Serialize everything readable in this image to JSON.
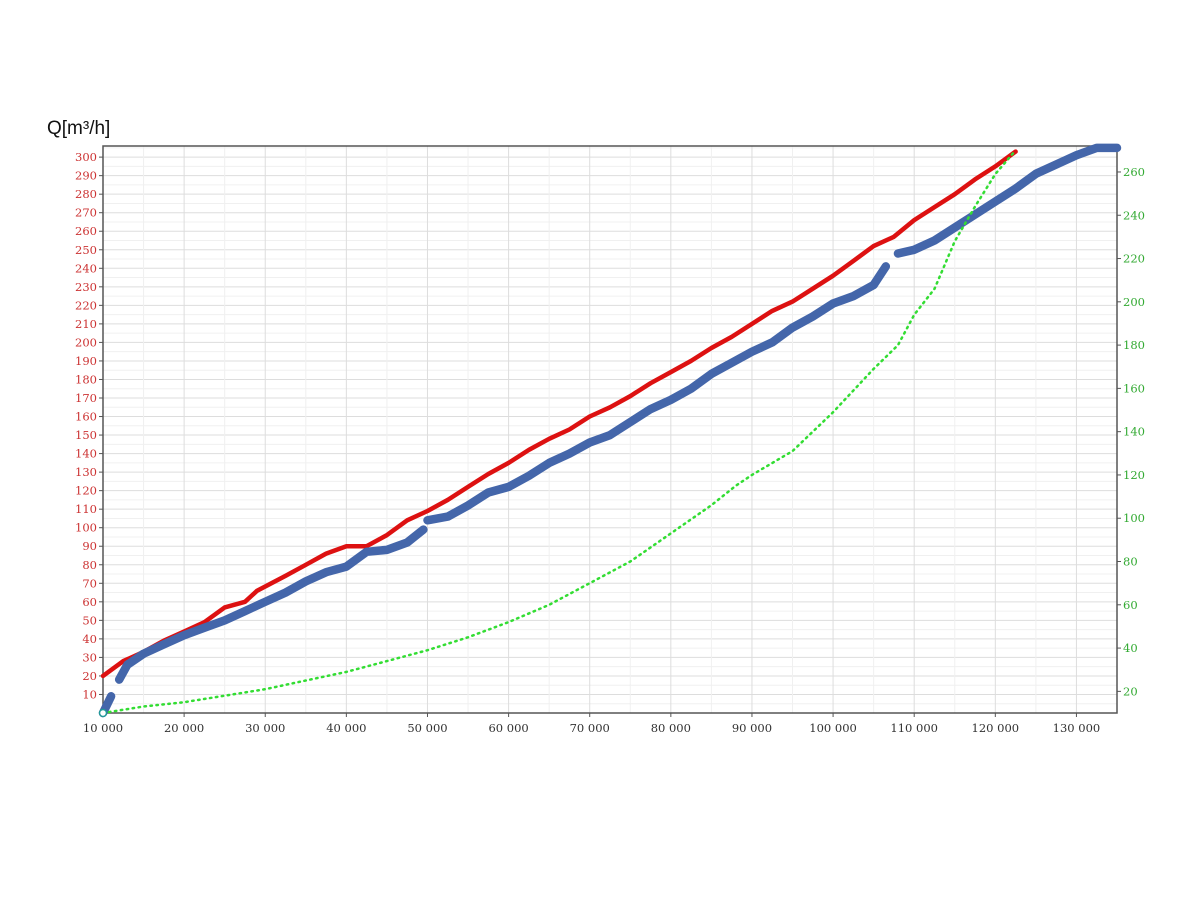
{
  "chart_data": {
    "type": "line",
    "ylabel": "Q[m³/h]",
    "xlim": [
      10000,
      135000
    ],
    "ylim_left": [
      0,
      306
    ],
    "ylim_right": [
      10,
      272
    ],
    "x_ticks": [
      10000,
      20000,
      30000,
      40000,
      50000,
      60000,
      70000,
      80000,
      90000,
      100000,
      110000,
      120000,
      130000
    ],
    "x_tick_labels": [
      "10 000",
      "20 000",
      "30 000",
      "40 000",
      "50 000",
      "60 000",
      "70 000",
      "80 000",
      "90 000",
      "100 000",
      "110 000",
      "120 000",
      "130 000"
    ],
    "y_left_ticks": [
      10,
      20,
      30,
      40,
      50,
      60,
      70,
      80,
      90,
      100,
      110,
      120,
      130,
      140,
      150,
      160,
      170,
      180,
      190,
      200,
      210,
      220,
      230,
      240,
      250,
      260,
      270,
      280,
      290,
      300
    ],
    "y_right_ticks": [
      20,
      40,
      60,
      80,
      100,
      120,
      140,
      160,
      180,
      200,
      220,
      240,
      260
    ],
    "grid": true,
    "colors": {
      "left_axis": "#cc3333",
      "right_axis": "#33aa33",
      "grid": "#dddddd"
    },
    "series": [
      {
        "color": "#dd1111",
        "axis": "left",
        "style": "solid",
        "points": [
          [
            10000,
            20
          ],
          [
            12500,
            28
          ],
          [
            15000,
            33
          ],
          [
            17500,
            39
          ],
          [
            20000,
            44
          ],
          [
            22500,
            49
          ],
          [
            25000,
            57
          ],
          [
            27500,
            60
          ],
          [
            29000,
            66
          ],
          [
            32500,
            74
          ],
          [
            35000,
            80
          ],
          [
            37500,
            86
          ],
          [
            40000,
            90
          ],
          [
            42500,
            90
          ],
          [
            45000,
            96
          ],
          [
            47500,
            104
          ],
          [
            50000,
            109
          ],
          [
            52500,
            115
          ],
          [
            55000,
            122
          ],
          [
            57500,
            129
          ],
          [
            60000,
            135
          ],
          [
            62500,
            142
          ],
          [
            65000,
            148
          ],
          [
            67500,
            153
          ],
          [
            70000,
            160
          ],
          [
            72500,
            165
          ],
          [
            75000,
            171
          ],
          [
            77500,
            178
          ],
          [
            80000,
            184
          ],
          [
            82500,
            190
          ],
          [
            85000,
            197
          ],
          [
            87500,
            203
          ],
          [
            90000,
            210
          ],
          [
            92500,
            217
          ],
          [
            95000,
            222
          ],
          [
            97500,
            229
          ],
          [
            100000,
            236
          ],
          [
            102500,
            244
          ],
          [
            105000,
            252
          ],
          [
            107500,
            257
          ],
          [
            110000,
            266
          ],
          [
            112500,
            273
          ],
          [
            115000,
            280
          ],
          [
            117500,
            288
          ],
          [
            120000,
            295
          ],
          [
            122500,
            303
          ]
        ]
      },
      {
        "color": "#4466aa",
        "axis": "left",
        "style": "thick",
        "segments": [
          [
            [
              10000,
              0
            ],
            [
              11000,
              9
            ]
          ],
          [
            [
              12000,
              18
            ],
            [
              13000,
              26
            ],
            [
              15000,
              32
            ],
            [
              17500,
              37
            ],
            [
              20000,
              42
            ],
            [
              22500,
              46
            ],
            [
              25000,
              50
            ],
            [
              27500,
              55
            ],
            [
              30000,
              60
            ],
            [
              32500,
              65
            ],
            [
              35000,
              71
            ],
            [
              37500,
              76
            ],
            [
              40000,
              79
            ],
            [
              42500,
              87
            ],
            [
              45000,
              88
            ],
            [
              47500,
              92
            ],
            [
              49500,
              99
            ]
          ],
          [
            [
              50000,
              104
            ],
            [
              52500,
              106
            ],
            [
              55000,
              112
            ],
            [
              57500,
              119
            ],
            [
              60000,
              122
            ],
            [
              62500,
              128
            ],
            [
              65000,
              135
            ],
            [
              67500,
              140
            ],
            [
              70000,
              146
            ],
            [
              72500,
              150
            ],
            [
              75000,
              157
            ],
            [
              77500,
              164
            ],
            [
              80000,
              169
            ],
            [
              82500,
              175
            ],
            [
              85000,
              183
            ],
            [
              87500,
              189
            ],
            [
              90000,
              195
            ],
            [
              92500,
              200
            ],
            [
              95000,
              208
            ],
            [
              97500,
              214
            ],
            [
              100000,
              221
            ],
            [
              102500,
              225
            ],
            [
              105000,
              231
            ],
            [
              106500,
              241
            ]
          ],
          [
            [
              108000,
              248
            ],
            [
              110000,
              250
            ],
            [
              112500,
              255
            ],
            [
              115000,
              262
            ],
            [
              117500,
              269
            ],
            [
              120000,
              276
            ],
            [
              122500,
              283
            ],
            [
              125000,
              291
            ],
            [
              127500,
              296
            ],
            [
              130000,
              301
            ],
            [
              132500,
              305
            ],
            [
              135000,
              305
            ]
          ]
        ]
      },
      {
        "color": "#33dd33",
        "axis": "right",
        "style": "dotted",
        "points": [
          [
            10000,
            10
          ],
          [
            15000,
            13
          ],
          [
            20000,
            15
          ],
          [
            25000,
            18
          ],
          [
            30000,
            21
          ],
          [
            35000,
            25
          ],
          [
            40000,
            29
          ],
          [
            45000,
            34
          ],
          [
            50000,
            39
          ],
          [
            55000,
            45
          ],
          [
            60000,
            52
          ],
          [
            65000,
            60
          ],
          [
            70000,
            70
          ],
          [
            75000,
            80
          ],
          [
            80000,
            93
          ],
          [
            85000,
            106
          ],
          [
            88000,
            115
          ],
          [
            90000,
            120
          ],
          [
            95000,
            131
          ],
          [
            100000,
            149
          ],
          [
            105000,
            169
          ],
          [
            108000,
            180
          ],
          [
            110000,
            194
          ],
          [
            112500,
            206
          ],
          [
            115000,
            228
          ],
          [
            117500,
            244
          ],
          [
            120000,
            259
          ],
          [
            122500,
            270
          ]
        ]
      }
    ]
  }
}
